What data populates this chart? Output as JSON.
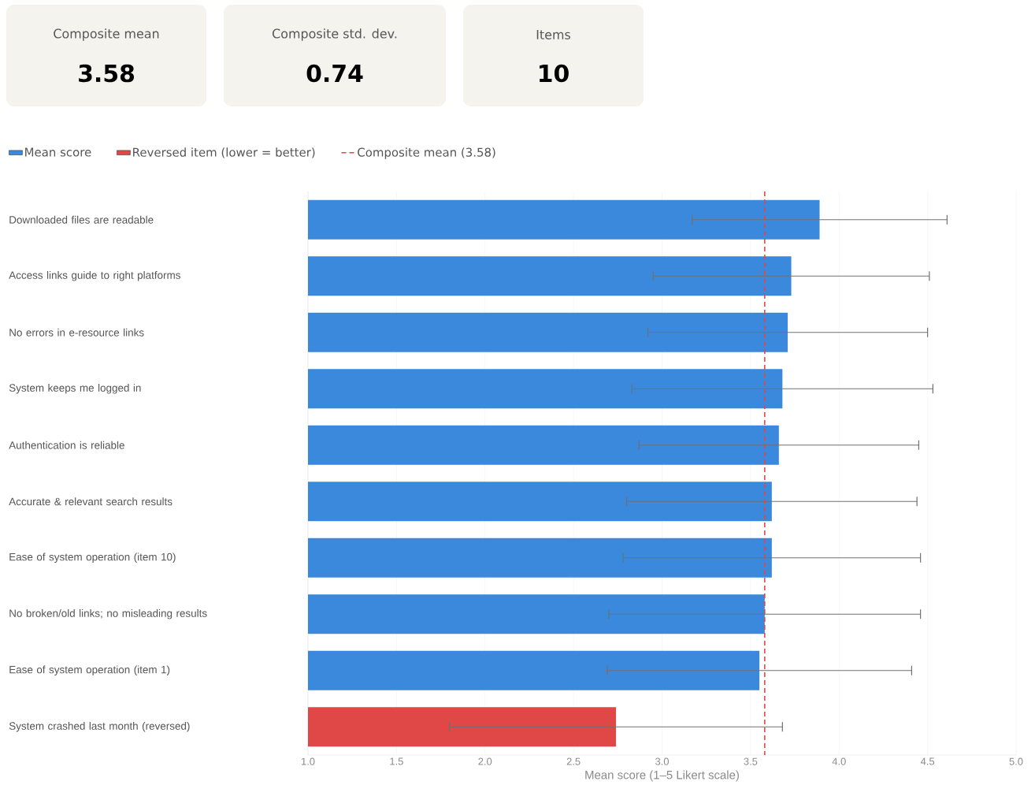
{
  "chart_data": [
    {
      "type": "other",
      "title": "Composite mean",
      "annotations": [
        "3.58"
      ]
    },
    {
      "type": "other",
      "title": "Composite std. dev.",
      "annotations": [
        "0.74"
      ]
    },
    {
      "type": "other",
      "title": "Items",
      "annotations": [
        "10"
      ]
    },
    {
      "type": "bar",
      "orientation": "horizontal",
      "xlabel": "Mean score (1–5 Likert scale)",
      "categories": [
        "Downloaded files are readable",
        "Access links guide to right platforms",
        "No errors in e-resource links",
        "System keeps me logged in",
        "Authentication is reliable",
        "Accurate & relevant search results",
        "Ease of system operation (item 10)",
        "No broken/old links; no misleading results",
        "Ease of system operation (item 1)",
        "System crashed last month (reversed)"
      ],
      "series": [
        {
          "name": "Mean score",
          "color": "#3a89dd",
          "values": [
            3.89,
            3.73,
            3.71,
            3.68,
            3.66,
            3.62,
            3.62,
            3.58,
            3.55,
            null
          ],
          "errors": [
            0.72,
            0.78,
            0.79,
            0.85,
            0.79,
            0.82,
            0.84,
            0.88,
            0.86,
            null
          ]
        },
        {
          "name": "Reversed item (lower = better)",
          "color": "#e04848",
          "values": [
            null,
            null,
            null,
            null,
            null,
            null,
            null,
            null,
            null,
            2.74
          ],
          "errors": [
            null,
            null,
            null,
            null,
            null,
            null,
            null,
            null,
            null,
            0.94
          ]
        }
      ],
      "ref_lines": [
        {
          "axis": "x",
          "value": 3.58,
          "label": "Composite mean (3.58)",
          "color": "#e04848",
          "line_style": "dashed"
        }
      ],
      "xlim": [
        1,
        5
      ],
      "xticks": [
        {
          "value": 1,
          "label": "1.0"
        },
        {
          "value": 1.5,
          "label": "1.5"
        },
        {
          "value": 2,
          "label": "2.0"
        },
        {
          "value": 2.5,
          "label": "2.5"
        },
        {
          "value": 3,
          "label": "3.0"
        },
        {
          "value": 3.5,
          "label": "3.5"
        },
        {
          "value": 4,
          "label": "4.0"
        },
        {
          "value": 4.5,
          "label": "4.5"
        },
        {
          "value": 5,
          "label": "5.0"
        }
      ],
      "grid": "x",
      "legend": "top left"
    }
  ]
}
